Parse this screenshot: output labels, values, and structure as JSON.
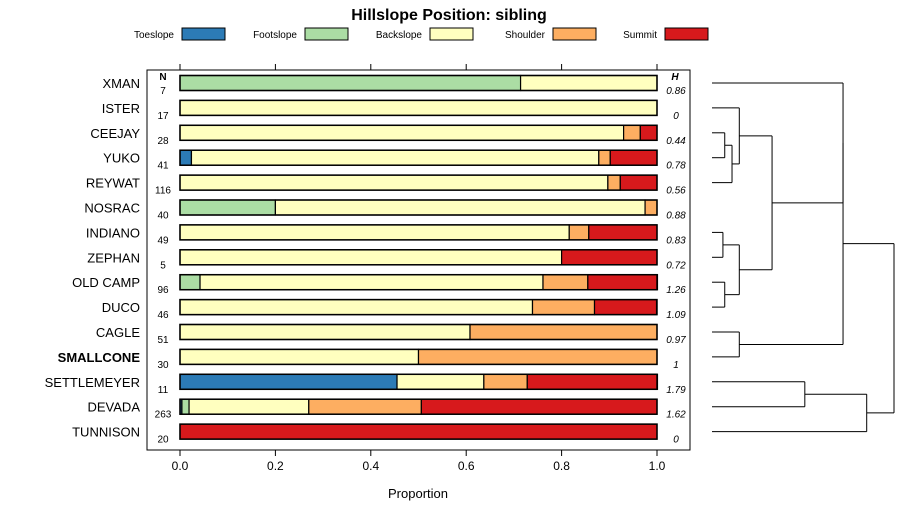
{
  "chart_data": {
    "type": "bar",
    "orientation": "horizontal",
    "stacked": true,
    "title": "Hillslope Position: sibling",
    "xlabel": "Proportion",
    "xlim": [
      0,
      1
    ],
    "x_ticks": [
      "0.0",
      "0.2",
      "0.4",
      "0.6",
      "0.8",
      "1.0"
    ],
    "grid": false,
    "legend_position": "top",
    "n_header": "N",
    "h_header": "H",
    "series": [
      {
        "name": "Toeslope",
        "color": "#2c7bb6"
      },
      {
        "name": "Footslope",
        "color": "#abdda4"
      },
      {
        "name": "Backslope",
        "color": "#ffffbf"
      },
      {
        "name": "Shoulder",
        "color": "#fdae61"
      },
      {
        "name": "Summit",
        "color": "#d7191c"
      }
    ],
    "categories": [
      {
        "label": "XMAN",
        "n": "7",
        "h": "0.86",
        "values": [
          0,
          0.714,
          0.286,
          0,
          0
        ]
      },
      {
        "label": "ISTER",
        "n": "17",
        "h": "0",
        "values": [
          0,
          0,
          1.0,
          0,
          0
        ]
      },
      {
        "label": "CEEJAY",
        "n": "28",
        "h": "0.44",
        "values": [
          0,
          0,
          0.93,
          0.035,
          0.035
        ]
      },
      {
        "label": "YUKO",
        "n": "41",
        "h": "0.78",
        "values": [
          0.024,
          0,
          0.854,
          0.024,
          0.098
        ]
      },
      {
        "label": "REYWAT",
        "n": "116",
        "h": "0.56",
        "values": [
          0,
          0,
          0.897,
          0.026,
          0.077
        ]
      },
      {
        "label": "NOSRAC",
        "n": "40",
        "h": "0.88",
        "values": [
          0,
          0.2,
          0.775,
          0.025,
          0
        ]
      },
      {
        "label": "INDIANO",
        "n": "49",
        "h": "0.83",
        "values": [
          0,
          0,
          0.816,
          0.041,
          0.143
        ]
      },
      {
        "label": "ZEPHAN",
        "n": "5",
        "h": "0.72",
        "values": [
          0,
          0,
          0.8,
          0,
          0.2
        ]
      },
      {
        "label": "OLD CAMP",
        "n": "96",
        "h": "1.26",
        "values": [
          0,
          0.042,
          0.719,
          0.094,
          0.146
        ]
      },
      {
        "label": "DUCO",
        "n": "46",
        "h": "1.09",
        "values": [
          0,
          0,
          0.739,
          0.13,
          0.13
        ]
      },
      {
        "label": "CAGLE",
        "n": "51",
        "h": "0.97",
        "values": [
          0,
          0,
          0.608,
          0.392,
          0
        ]
      },
      {
        "label": "SMALLCONE",
        "n": "30",
        "h": "1",
        "bold": true,
        "values": [
          0,
          0,
          0.5,
          0.5,
          0
        ]
      },
      {
        "label": "SETTLEMEYER",
        "n": "11",
        "h": "1.79",
        "values": [
          0.455,
          0,
          0.182,
          0.091,
          0.273
        ]
      },
      {
        "label": "DEVADA",
        "n": "263",
        "h": "1.62",
        "values": [
          0.004,
          0.015,
          0.251,
          0.236,
          0.494
        ]
      },
      {
        "label": "TUNNISON",
        "n": "20",
        "h": "0",
        "values": [
          0,
          0,
          0,
          0,
          1.0
        ]
      }
    ],
    "dendrogram": {
      "merges": [
        [
          -3,
          -4
        ],
        [
          -5,
          1
        ],
        [
          -2,
          2
        ],
        [
          -7,
          -8
        ],
        [
          -9,
          -10
        ],
        [
          4,
          5
        ],
        [
          -11,
          -12
        ],
        [
          3,
          6
        ],
        [
          -1,
          8
        ],
        [
          -13,
          -14
        ],
        [
          10,
          -15
        ],
        [
          9,
          7
        ],
        [
          12,
          11
        ]
      ],
      "heights": [
        0.07,
        0.11,
        0.15,
        0.06,
        0.07,
        0.15,
        0.15,
        0.33,
        0.72,
        0.51,
        0.85,
        0.72,
        1.0
      ]
    }
  }
}
